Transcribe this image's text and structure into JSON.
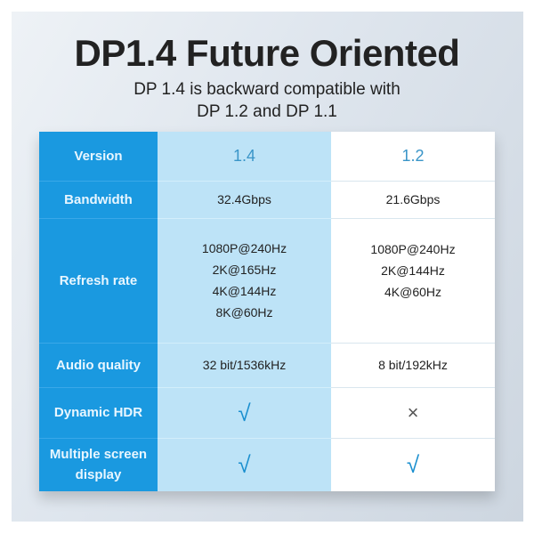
{
  "title": "DP1.4 Future Oriented",
  "subtitle": [
    "DP 1.4 is backward compatible with",
    "DP 1.2 and DP 1.1"
  ],
  "table": {
    "rows": [
      {
        "label": "Version",
        "v14": "1.4",
        "v12": "1.2"
      },
      {
        "label": "Bandwidth",
        "v14": "32.4Gbps",
        "v12": "21.6Gbps"
      },
      {
        "label": "Refresh rate",
        "v14": [
          "1080P@240Hz",
          "2K@165Hz",
          "4K@144Hz",
          "8K@60Hz"
        ],
        "v12": [
          "1080P@240Hz",
          "2K@144Hz",
          "4K@60Hz"
        ]
      },
      {
        "label": "Audio quality",
        "v14": "32 bit/1536kHz",
        "v12": "8 bit/192kHz"
      },
      {
        "label": "Dynamic HDR",
        "v14": "√",
        "v12": "×"
      },
      {
        "label": [
          "Multiple screen",
          "display"
        ],
        "v14": "√",
        "v12": "√"
      }
    ]
  },
  "colors": {
    "header_blue": "#1a99e0",
    "col14_bg": "#bde3f7",
    "check": "#1a8fcf"
  }
}
